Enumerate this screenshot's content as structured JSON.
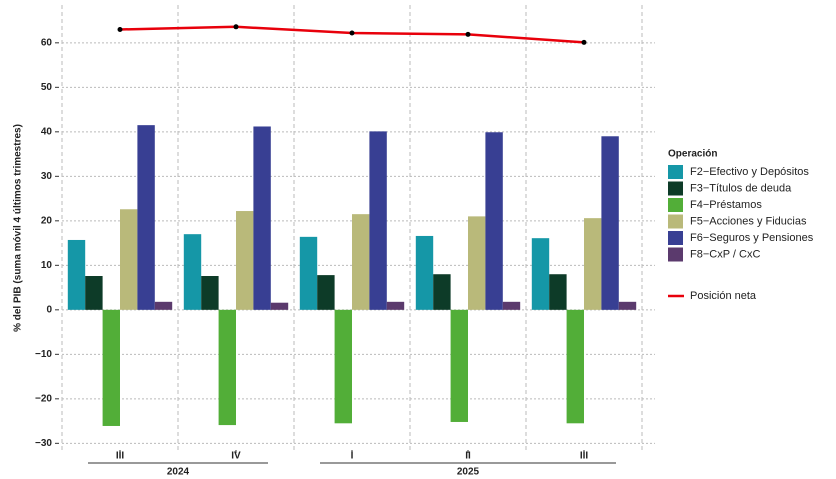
{
  "chart_data": {
    "type": "bar",
    "y_label": "% del PIB (suma móvil 4 últimos trimestres)",
    "categories": [
      "III",
      "IV",
      "I",
      "II",
      "III"
    ],
    "year_groups": [
      {
        "label": "2024",
        "categories": [
          0,
          1
        ]
      },
      {
        "label": "2025",
        "categories": [
          2,
          4
        ]
      }
    ],
    "ylim": [
      -31.5,
      68.5
    ],
    "yticks": [
      {
        "value": -30,
        "label": "−30"
      },
      {
        "value": -20,
        "label": "−20"
      },
      {
        "value": -10,
        "label": "−10"
      },
      0,
      10,
      20,
      30,
      40,
      50,
      60
    ],
    "grid": true,
    "legend_title": "Operación",
    "series": [
      {
        "name": "F2−Efectivo y Depósitos",
        "color": "#1597a7",
        "values": [
          15.7,
          17.0,
          16.4,
          16.6,
          16.1
        ]
      },
      {
        "name": "F3−Títulos de deuda",
        "color": "#0d3b28",
        "values": [
          7.6,
          7.6,
          7.8,
          8.0,
          8.0
        ]
      },
      {
        "name": "F4−Préstamos",
        "color": "#52ae38",
        "values": [
          -26.1,
          -25.9,
          -25.5,
          -25.2,
          -25.5
        ]
      },
      {
        "name": "F5−Acciones y Fiducias",
        "color": "#b9b97a",
        "values": [
          22.6,
          22.2,
          21.5,
          21.0,
          20.6
        ]
      },
      {
        "name": "F6−Seguros y Pensiones",
        "color": "#383f93",
        "values": [
          41.5,
          41.2,
          40.1,
          39.9,
          39.0
        ]
      },
      {
        "name": "F8−CxP / CxC",
        "color": "#5b3a6d",
        "values": [
          1.8,
          1.6,
          1.8,
          1.8,
          1.8
        ]
      }
    ],
    "line_series": {
      "name": "Posición neta",
      "color": "#e8000b",
      "values": [
        63.0,
        63.6,
        62.2,
        61.9,
        60.1
      ]
    }
  }
}
